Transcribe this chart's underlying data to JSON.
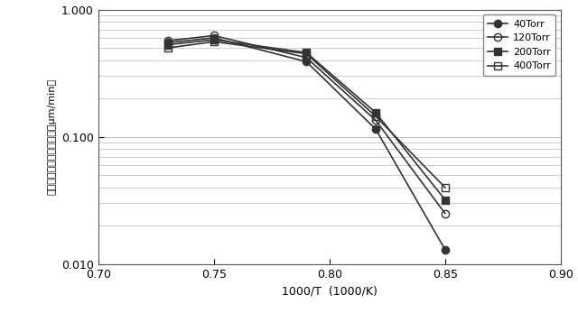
{
  "series": [
    {
      "label": "40Torr",
      "x": [
        0.73,
        0.75,
        0.79,
        0.82,
        0.85
      ],
      "y": [
        0.55,
        0.6,
        0.39,
        0.115,
        0.013
      ],
      "marker": "o",
      "markerfacecolor": "#333333",
      "markeredgecolor": "#333333",
      "color": "#333333",
      "fillstyle": "full"
    },
    {
      "label": "120Torr",
      "x": [
        0.73,
        0.75,
        0.79,
        0.82,
        0.85
      ],
      "y": [
        0.57,
        0.625,
        0.42,
        0.135,
        0.025
      ],
      "marker": "o",
      "markerfacecolor": "#ffffff",
      "markeredgecolor": "#333333",
      "color": "#333333",
      "fillstyle": "none"
    },
    {
      "label": "200Torr",
      "x": [
        0.73,
        0.75,
        0.79,
        0.82,
        0.85
      ],
      "y": [
        0.53,
        0.58,
        0.46,
        0.155,
        0.032
      ],
      "marker": "s",
      "markerfacecolor": "#333333",
      "markeredgecolor": "#333333",
      "color": "#333333",
      "fillstyle": "full"
    },
    {
      "label": "400Torr",
      "x": [
        0.73,
        0.75,
        0.79,
        0.82,
        0.85
      ],
      "y": [
        0.5,
        0.56,
        0.45,
        0.145,
        0.04
      ],
      "marker": "s",
      "markerfacecolor": "#ffffff",
      "markeredgecolor": "#333333",
      "color": "#333333",
      "fillstyle": "none"
    }
  ],
  "xlim": [
    0.7,
    0.9
  ],
  "ylim": [
    0.01,
    1.0
  ],
  "xlabel": "1000/T  (1000/K)",
  "ylabel": "エピタキシャル成長速度（μm/min）",
  "xticks": [
    0.7,
    0.75,
    0.8,
    0.85,
    0.9
  ],
  "xtick_labels": [
    "0.70",
    "0.75",
    "0.80",
    "0.85",
    "0.90"
  ],
  "yticks": [
    0.01,
    0.1,
    1.0
  ],
  "ytick_labels": [
    "0.010",
    "0.100",
    "1.000"
  ],
  "background_color": "#ffffff",
  "plot_bg_color": "#ffffff",
  "grid_color": "#bbbbbb",
  "linewidth": 1.2,
  "markersize": 6
}
